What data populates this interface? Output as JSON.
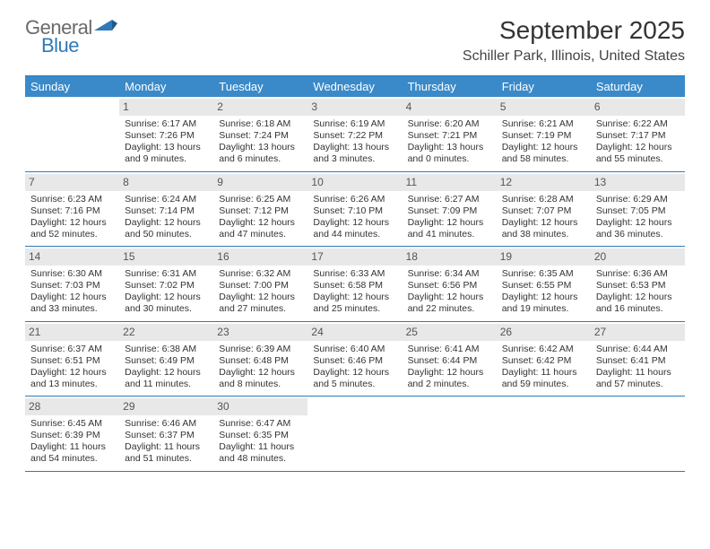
{
  "logo": {
    "top": "General",
    "bottom": "Blue",
    "accent_color": "#2f7ab8",
    "grey_color": "#6a6a6a"
  },
  "title": "September 2025",
  "location": "Schiller Park, Illinois, United States",
  "colors": {
    "header_bg": "#3a8ac9",
    "header_text": "#ffffff",
    "rule": "#2f7ab8",
    "daynum_bg": "#e8e8e8",
    "daynum_text": "#555555",
    "body_text": "#333333",
    "background": "#ffffff"
  },
  "day_headers": [
    "Sunday",
    "Monday",
    "Tuesday",
    "Wednesday",
    "Thursday",
    "Friday",
    "Saturday"
  ],
  "weeks": [
    [
      null,
      {
        "n": "1",
        "sunrise": "Sunrise: 6:17 AM",
        "sunset": "Sunset: 7:26 PM",
        "d1": "Daylight: 13 hours",
        "d2": "and 9 minutes."
      },
      {
        "n": "2",
        "sunrise": "Sunrise: 6:18 AM",
        "sunset": "Sunset: 7:24 PM",
        "d1": "Daylight: 13 hours",
        "d2": "and 6 minutes."
      },
      {
        "n": "3",
        "sunrise": "Sunrise: 6:19 AM",
        "sunset": "Sunset: 7:22 PM",
        "d1": "Daylight: 13 hours",
        "d2": "and 3 minutes."
      },
      {
        "n": "4",
        "sunrise": "Sunrise: 6:20 AM",
        "sunset": "Sunset: 7:21 PM",
        "d1": "Daylight: 13 hours",
        "d2": "and 0 minutes."
      },
      {
        "n": "5",
        "sunrise": "Sunrise: 6:21 AM",
        "sunset": "Sunset: 7:19 PM",
        "d1": "Daylight: 12 hours",
        "d2": "and 58 minutes."
      },
      {
        "n": "6",
        "sunrise": "Sunrise: 6:22 AM",
        "sunset": "Sunset: 7:17 PM",
        "d1": "Daylight: 12 hours",
        "d2": "and 55 minutes."
      }
    ],
    [
      {
        "n": "7",
        "sunrise": "Sunrise: 6:23 AM",
        "sunset": "Sunset: 7:16 PM",
        "d1": "Daylight: 12 hours",
        "d2": "and 52 minutes."
      },
      {
        "n": "8",
        "sunrise": "Sunrise: 6:24 AM",
        "sunset": "Sunset: 7:14 PM",
        "d1": "Daylight: 12 hours",
        "d2": "and 50 minutes."
      },
      {
        "n": "9",
        "sunrise": "Sunrise: 6:25 AM",
        "sunset": "Sunset: 7:12 PM",
        "d1": "Daylight: 12 hours",
        "d2": "and 47 minutes."
      },
      {
        "n": "10",
        "sunrise": "Sunrise: 6:26 AM",
        "sunset": "Sunset: 7:10 PM",
        "d1": "Daylight: 12 hours",
        "d2": "and 44 minutes."
      },
      {
        "n": "11",
        "sunrise": "Sunrise: 6:27 AM",
        "sunset": "Sunset: 7:09 PM",
        "d1": "Daylight: 12 hours",
        "d2": "and 41 minutes."
      },
      {
        "n": "12",
        "sunrise": "Sunrise: 6:28 AM",
        "sunset": "Sunset: 7:07 PM",
        "d1": "Daylight: 12 hours",
        "d2": "and 38 minutes."
      },
      {
        "n": "13",
        "sunrise": "Sunrise: 6:29 AM",
        "sunset": "Sunset: 7:05 PM",
        "d1": "Daylight: 12 hours",
        "d2": "and 36 minutes."
      }
    ],
    [
      {
        "n": "14",
        "sunrise": "Sunrise: 6:30 AM",
        "sunset": "Sunset: 7:03 PM",
        "d1": "Daylight: 12 hours",
        "d2": "and 33 minutes."
      },
      {
        "n": "15",
        "sunrise": "Sunrise: 6:31 AM",
        "sunset": "Sunset: 7:02 PM",
        "d1": "Daylight: 12 hours",
        "d2": "and 30 minutes."
      },
      {
        "n": "16",
        "sunrise": "Sunrise: 6:32 AM",
        "sunset": "Sunset: 7:00 PM",
        "d1": "Daylight: 12 hours",
        "d2": "and 27 minutes."
      },
      {
        "n": "17",
        "sunrise": "Sunrise: 6:33 AM",
        "sunset": "Sunset: 6:58 PM",
        "d1": "Daylight: 12 hours",
        "d2": "and 25 minutes."
      },
      {
        "n": "18",
        "sunrise": "Sunrise: 6:34 AM",
        "sunset": "Sunset: 6:56 PM",
        "d1": "Daylight: 12 hours",
        "d2": "and 22 minutes."
      },
      {
        "n": "19",
        "sunrise": "Sunrise: 6:35 AM",
        "sunset": "Sunset: 6:55 PM",
        "d1": "Daylight: 12 hours",
        "d2": "and 19 minutes."
      },
      {
        "n": "20",
        "sunrise": "Sunrise: 6:36 AM",
        "sunset": "Sunset: 6:53 PM",
        "d1": "Daylight: 12 hours",
        "d2": "and 16 minutes."
      }
    ],
    [
      {
        "n": "21",
        "sunrise": "Sunrise: 6:37 AM",
        "sunset": "Sunset: 6:51 PM",
        "d1": "Daylight: 12 hours",
        "d2": "and 13 minutes."
      },
      {
        "n": "22",
        "sunrise": "Sunrise: 6:38 AM",
        "sunset": "Sunset: 6:49 PM",
        "d1": "Daylight: 12 hours",
        "d2": "and 11 minutes."
      },
      {
        "n": "23",
        "sunrise": "Sunrise: 6:39 AM",
        "sunset": "Sunset: 6:48 PM",
        "d1": "Daylight: 12 hours",
        "d2": "and 8 minutes."
      },
      {
        "n": "24",
        "sunrise": "Sunrise: 6:40 AM",
        "sunset": "Sunset: 6:46 PM",
        "d1": "Daylight: 12 hours",
        "d2": "and 5 minutes."
      },
      {
        "n": "25",
        "sunrise": "Sunrise: 6:41 AM",
        "sunset": "Sunset: 6:44 PM",
        "d1": "Daylight: 12 hours",
        "d2": "and 2 minutes."
      },
      {
        "n": "26",
        "sunrise": "Sunrise: 6:42 AM",
        "sunset": "Sunset: 6:42 PM",
        "d1": "Daylight: 11 hours",
        "d2": "and 59 minutes."
      },
      {
        "n": "27",
        "sunrise": "Sunrise: 6:44 AM",
        "sunset": "Sunset: 6:41 PM",
        "d1": "Daylight: 11 hours",
        "d2": "and 57 minutes."
      }
    ],
    [
      {
        "n": "28",
        "sunrise": "Sunrise: 6:45 AM",
        "sunset": "Sunset: 6:39 PM",
        "d1": "Daylight: 11 hours",
        "d2": "and 54 minutes."
      },
      {
        "n": "29",
        "sunrise": "Sunrise: 6:46 AM",
        "sunset": "Sunset: 6:37 PM",
        "d1": "Daylight: 11 hours",
        "d2": "and 51 minutes."
      },
      {
        "n": "30",
        "sunrise": "Sunrise: 6:47 AM",
        "sunset": "Sunset: 6:35 PM",
        "d1": "Daylight: 11 hours",
        "d2": "and 48 minutes."
      },
      null,
      null,
      null,
      null
    ]
  ]
}
